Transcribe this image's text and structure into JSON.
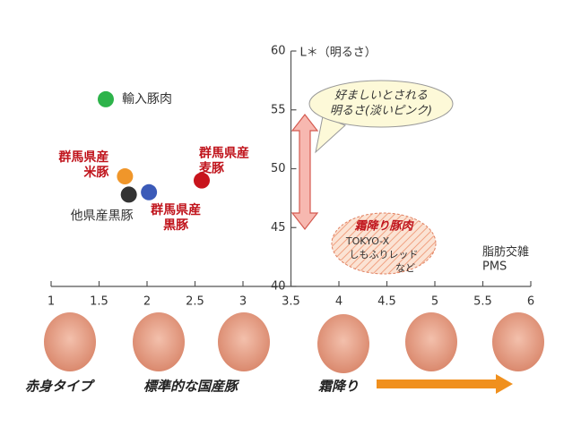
{
  "chart_data": {
    "type": "scatter",
    "y_label": "L＊（明るさ）",
    "xlim": [
      1,
      6
    ],
    "xticks": [
      1,
      1.5,
      2,
      2.5,
      3,
      3.5,
      4,
      4.5,
      5,
      5.5,
      6
    ],
    "ylim": [
      40,
      60
    ],
    "yticks": [
      40,
      45,
      50,
      55,
      60
    ],
    "y_axis_at": 3.5,
    "points": [
      {
        "label": [
          "輸入豚肉"
        ],
        "x": 1.57,
        "y": 55.9,
        "color": "#2db34a",
        "label_color": "#333333"
      },
      {
        "label": [
          "群馬県産",
          "米豚"
        ],
        "x": 1.77,
        "y": 49.35,
        "color": "#f0962a",
        "label_color": "#c0141c"
      },
      {
        "label": [
          "他県産黒豚"
        ],
        "x": 1.81,
        "y": 47.8,
        "color": "#333333",
        "label_color": "#333333"
      },
      {
        "label": [
          "群馬県産",
          "黒豚"
        ],
        "x": 2.02,
        "y": 48.0,
        "color": "#3b5ab8",
        "label_color": "#c0141c"
      },
      {
        "label": [
          "群馬県産",
          "麦豚"
        ],
        "x": 2.57,
        "y": 49.0,
        "color": "#c8141c",
        "label_color": "#c0141c"
      }
    ],
    "annotations": {
      "preferred": [
        "好ましいとされる",
        "明るさ(淡いピンク)"
      ],
      "marbled_title": "霜降り豚肉",
      "marbled_items": [
        "TOKYO-X",
        "しもふりレッド",
        "など"
      ],
      "x_label": [
        "脂肪交雑",
        "PMS"
      ]
    },
    "bottom_labels": [
      "赤身タイプ",
      "標準的な国産豚",
      "霜降り"
    ]
  }
}
